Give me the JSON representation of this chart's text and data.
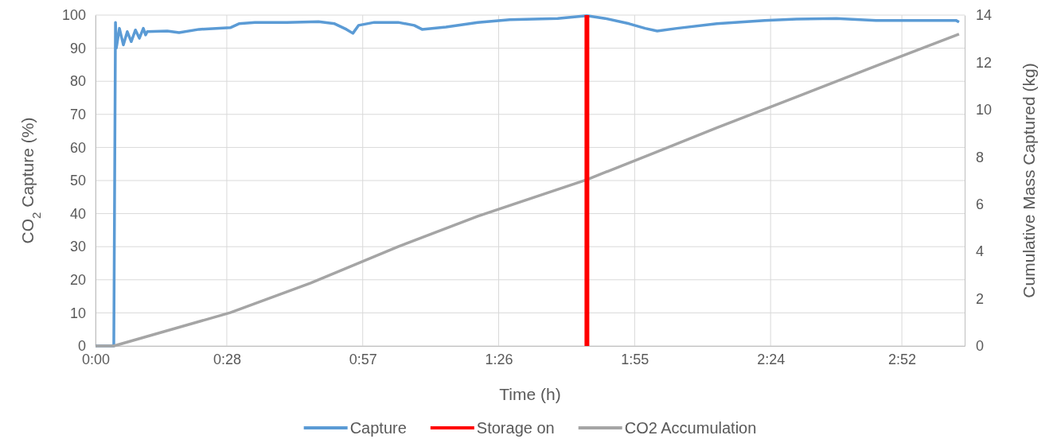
{
  "chart_data": {
    "type": "line",
    "xlabel": "Time (h)",
    "ylabel": "CO$_{2}$ Capture (%)",
    "y2label": "Cumulative Mass Captured (kg)",
    "xlim": [
      0,
      3.09
    ],
    "xticks": [
      {
        "value": 0,
        "label": "0:00"
      },
      {
        "value": 0.4667,
        "label": "0:28"
      },
      {
        "value": 0.95,
        "label": "0:57"
      },
      {
        "value": 1.4333,
        "label": "1:26"
      },
      {
        "value": 1.9167,
        "label": "1:55"
      },
      {
        "value": 2.4,
        "label": "2:24"
      },
      {
        "value": 2.8667,
        "label": "2:52"
      }
    ],
    "ylim": [
      0,
      100
    ],
    "yticks": [
      0,
      10,
      20,
      30,
      40,
      50,
      60,
      70,
      80,
      90,
      100
    ],
    "y2lim": [
      0,
      14
    ],
    "y2ticks": [
      0,
      2,
      4,
      6,
      8,
      10,
      12,
      14
    ],
    "grid": true,
    "legend": "bottom",
    "line_style": "solid",
    "marker": "none",
    "ref_lines": [
      {
        "axis": "x",
        "value": 1.747,
        "label": "Storage on",
        "color": "#ff0000"
      }
    ],
    "series": [
      {
        "name": "Capture",
        "color": "#5b9bd5",
        "x": [
          0,
          0.065,
          0.071,
          0.074,
          0.085,
          0.099,
          0.113,
          0.127,
          0.142,
          0.156,
          0.17,
          0.178,
          0.184,
          0.255,
          0.297,
          0.368,
          0.479,
          0.51,
          0.567,
          0.68,
          0.793,
          0.85,
          0.892,
          0.915,
          0.935,
          0.991,
          1.076,
          1.133,
          1.161,
          1.246,
          1.359,
          1.473,
          1.643,
          1.747,
          1.812,
          1.897,
          1.954,
          1.997,
          2.067,
          2.209,
          2.379,
          2.492,
          2.634,
          2.775,
          2.917,
          3.059,
          3.07
        ],
        "values": [
          0,
          0,
          97.8,
          90,
          96,
          91,
          95,
          92,
          95.5,
          93,
          96,
          94,
          95,
          95.2,
          94.7,
          95.7,
          96.2,
          97.4,
          97.8,
          97.8,
          98,
          97.4,
          95.7,
          94.5,
          96.9,
          97.8,
          97.8,
          96.9,
          95.7,
          96.4,
          97.8,
          98.6,
          99,
          99.8,
          99,
          97.4,
          96,
          95.2,
          96,
          97.4,
          98.4,
          98.8,
          99,
          98.4,
          98.4,
          98.4,
          97.9
        ]
      },
      {
        "name": "CO2 Accumulation",
        "color": "#a5a5a5",
        "axis": "y2",
        "x": [
          0,
          0.065,
          0.479,
          0.765,
          1.076,
          1.359,
          1.747,
          1.982,
          2.209,
          2.492,
          2.775,
          3.07
        ],
        "values": [
          0,
          0,
          1.41,
          2.66,
          4.2,
          5.49,
          7.04,
          8.15,
          9.23,
          10.54,
          11.85,
          13.2
        ]
      }
    ]
  }
}
